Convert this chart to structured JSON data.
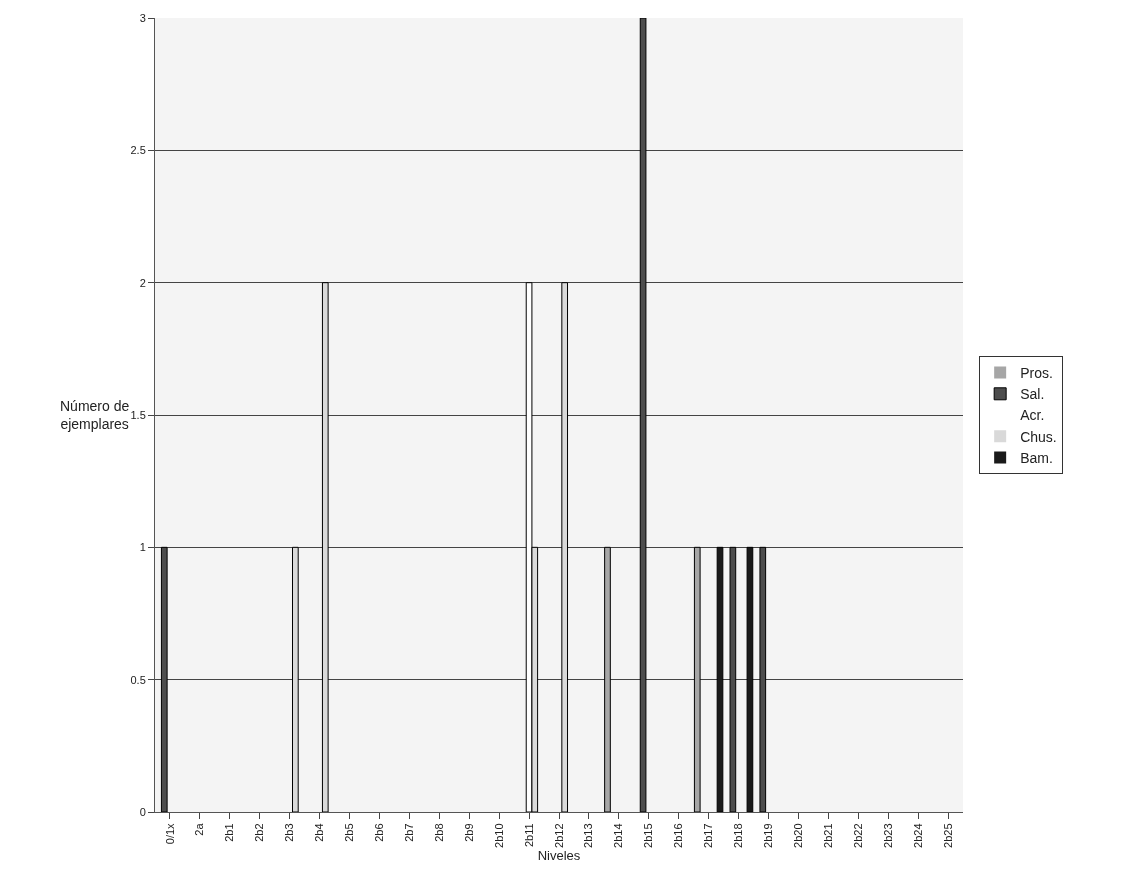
{
  "chart_data": {
    "type": "bar",
    "xlabel": "Niveles",
    "ylabel": "Número de ejemplares",
    "categories": [
      "0/1x",
      "2a",
      "2b1",
      "2b2",
      "2b3",
      "2b4",
      "2b5",
      "2b6",
      "2b7",
      "2b8",
      "2b9",
      "2b10",
      "2b11",
      "2b12",
      "2b13",
      "2b14",
      "2b15",
      "2b16",
      "2b17",
      "2b18",
      "2b19",
      "2b20",
      "2b21",
      "2b22",
      "2b23",
      "2b24",
      "2b25"
    ],
    "series": [
      {
        "name": "Pros.",
        "color": "#a6a6a6",
        "values": [
          0,
          0,
          0,
          0,
          0,
          0,
          0,
          0,
          0,
          0,
          0,
          0,
          0,
          0,
          0,
          1,
          0,
          0,
          1,
          0,
          0,
          0,
          0,
          0,
          0,
          0,
          0
        ]
      },
      {
        "name": "Sal.",
        "color": "#4d4d4d",
        "values": [
          1,
          0,
          0,
          0,
          0,
          0,
          0,
          0,
          0,
          0,
          0,
          0,
          0,
          0,
          0,
          0,
          3,
          0,
          0,
          1,
          1,
          0,
          0,
          0,
          0,
          0,
          0
        ]
      },
      {
        "name": "Acr.",
        "color": "#ffffff",
        "values": [
          0,
          0,
          0,
          0,
          0,
          0,
          0,
          0,
          0,
          0,
          0,
          0,
          2,
          0,
          0,
          0,
          0,
          0,
          0,
          0,
          0,
          0,
          0,
          0,
          0,
          0,
          0
        ]
      },
      {
        "name": "Chus.",
        "color": "#d9d9d9",
        "values": [
          0,
          0,
          0,
          0,
          1,
          2,
          0,
          0,
          0,
          0,
          0,
          0,
          1,
          2,
          0,
          0,
          0,
          0,
          0,
          0,
          0,
          0,
          0,
          0,
          0,
          0,
          0
        ]
      },
      {
        "name": "Bam.",
        "color": "#1a1a1a",
        "values": [
          0,
          0,
          0,
          0,
          0,
          0,
          0,
          0,
          0,
          0,
          0,
          0,
          0,
          0,
          0,
          0,
          0,
          0,
          1,
          1,
          0,
          0,
          0,
          0,
          0,
          0,
          0
        ]
      }
    ],
    "ylim": [
      0,
      3
    ],
    "yticks": [
      0,
      0.5,
      1,
      1.5,
      2,
      2.5,
      3
    ],
    "grid": "y",
    "legend": "right"
  }
}
